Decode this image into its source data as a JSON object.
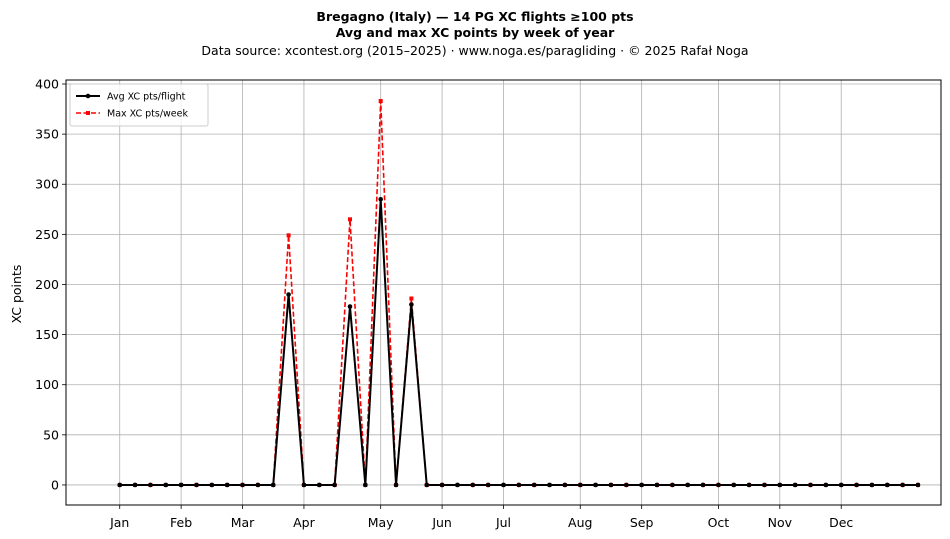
{
  "chart_data": {
    "type": "line",
    "title": "Bregagno (Italy)  —  14 PG XC flights ≥100 pts",
    "subtitle": "Avg and max XC points by week of year",
    "source_line": "Data source: xcontest.org (2015–2025)  ·  www.noga.es/paragliding  ·  © 2025 Rafał Noga",
    "xlabel": "",
    "ylabel": "XC points",
    "xlim": [
      -2.5,
      54.5
    ],
    "ylim": [
      -20,
      404
    ],
    "yticks": [
      0,
      50,
      100,
      150,
      200,
      250,
      300,
      350,
      400
    ],
    "month_ticks": [
      {
        "label": "Jan",
        "week": 1
      },
      {
        "label": "Feb",
        "week": 5
      },
      {
        "label": "Mar",
        "week": 9
      },
      {
        "label": "Apr",
        "week": 13
      },
      {
        "label": "May",
        "week": 18
      },
      {
        "label": "Jun",
        "week": 22
      },
      {
        "label": "Jul",
        "week": 26
      },
      {
        "label": "Aug",
        "week": 31
      },
      {
        "label": "Sep",
        "week": 35
      },
      {
        "label": "Oct",
        "week": 40
      },
      {
        "label": "Nov",
        "week": 44
      },
      {
        "label": "Dec",
        "week": 48
      }
    ],
    "x": [
      1,
      2,
      3,
      4,
      5,
      6,
      7,
      8,
      9,
      10,
      11,
      12,
      13,
      14,
      15,
      16,
      17,
      18,
      19,
      20,
      21,
      22,
      23,
      24,
      25,
      26,
      27,
      28,
      29,
      30,
      31,
      32,
      33,
      34,
      35,
      36,
      37,
      38,
      39,
      40,
      41,
      42,
      43,
      44,
      45,
      46,
      47,
      48,
      49,
      50,
      51,
      52,
      53
    ],
    "series": [
      {
        "name": "Avg XC pts/flight",
        "color": "#000000",
        "style": "solid",
        "marker": "circle",
        "values": [
          0,
          0,
          0,
          0,
          0,
          0,
          0,
          0,
          0,
          0,
          0,
          190,
          0,
          0,
          0,
          178,
          0,
          285,
          0,
          180,
          0,
          0,
          0,
          0,
          0,
          0,
          0,
          0,
          0,
          0,
          0,
          0,
          0,
          0,
          0,
          0,
          0,
          0,
          0,
          0,
          0,
          0,
          0,
          0,
          0,
          0,
          0,
          0,
          0,
          0,
          0,
          0,
          0
        ]
      },
      {
        "name": "Max XC pts/week",
        "color": "#ff0000",
        "style": "dashed",
        "marker": "square",
        "values": [
          0,
          0,
          0,
          0,
          0,
          0,
          0,
          0,
          0,
          0,
          0,
          249,
          0,
          0,
          0,
          265,
          0,
          383,
          0,
          186,
          0,
          0,
          0,
          0,
          0,
          0,
          0,
          0,
          0,
          0,
          0,
          0,
          0,
          0,
          0,
          0,
          0,
          0,
          0,
          0,
          0,
          0,
          0,
          0,
          0,
          0,
          0,
          0,
          0,
          0,
          0,
          0,
          0
        ]
      }
    ],
    "grid": true,
    "legend_position": "top-left"
  }
}
